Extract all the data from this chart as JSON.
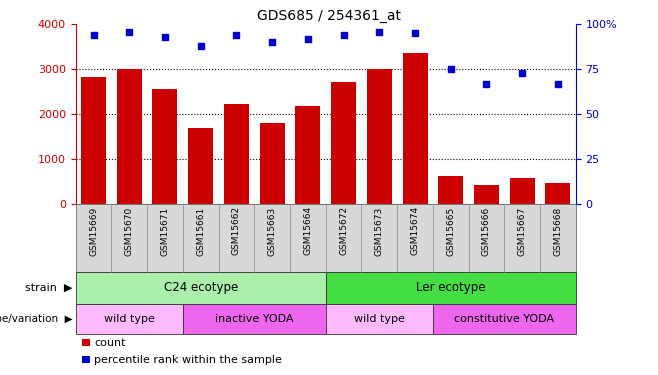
{
  "title": "GDS685 / 254361_at",
  "samples": [
    "GSM15669",
    "GSM15670",
    "GSM15671",
    "GSM15661",
    "GSM15662",
    "GSM15663",
    "GSM15664",
    "GSM15672",
    "GSM15673",
    "GSM15674",
    "GSM15665",
    "GSM15666",
    "GSM15667",
    "GSM15668"
  ],
  "counts": [
    2820,
    3000,
    2560,
    1700,
    2230,
    1800,
    2180,
    2730,
    3000,
    3370,
    620,
    420,
    580,
    480
  ],
  "percentiles": [
    94,
    96,
    93,
    88,
    94,
    90,
    92,
    94,
    96,
    95,
    75,
    67,
    73,
    67
  ],
  "bar_color": "#cc0000",
  "dot_color": "#0000cc",
  "ylim_left": [
    0,
    4000
  ],
  "ylim_right": [
    0,
    100
  ],
  "yticks_left": [
    0,
    1000,
    2000,
    3000,
    4000
  ],
  "ytick_labels_right": [
    "0",
    "25",
    "50",
    "75",
    "100%"
  ],
  "yticks_right": [
    0,
    25,
    50,
    75,
    100
  ],
  "strain_groups": [
    {
      "label": "C24 ecotype",
      "start": 0,
      "end": 7,
      "color": "#aaf0aa"
    },
    {
      "label": "Ler ecotype",
      "start": 7,
      "end": 14,
      "color": "#44dd44"
    }
  ],
  "genotype_groups": [
    {
      "label": "wild type",
      "start": 0,
      "end": 3,
      "color": "#ffbbff"
    },
    {
      "label": "inactive YODA",
      "start": 3,
      "end": 7,
      "color": "#ee66ee"
    },
    {
      "label": "wild type",
      "start": 7,
      "end": 10,
      "color": "#ffbbff"
    },
    {
      "label": "constitutive YODA",
      "start": 10,
      "end": 14,
      "color": "#ee66ee"
    }
  ],
  "legend_items": [
    {
      "label": "count",
      "color": "#cc0000"
    },
    {
      "label": "percentile rank within the sample",
      "color": "#0000cc"
    }
  ],
  "left_axis_color": "#cc0000",
  "right_axis_color": "#0000cc",
  "grid_color": "#000000",
  "strain_row_label": "strain",
  "genotype_row_label": "genotype/variation",
  "xticklabel_bg": "#d8d8d8"
}
